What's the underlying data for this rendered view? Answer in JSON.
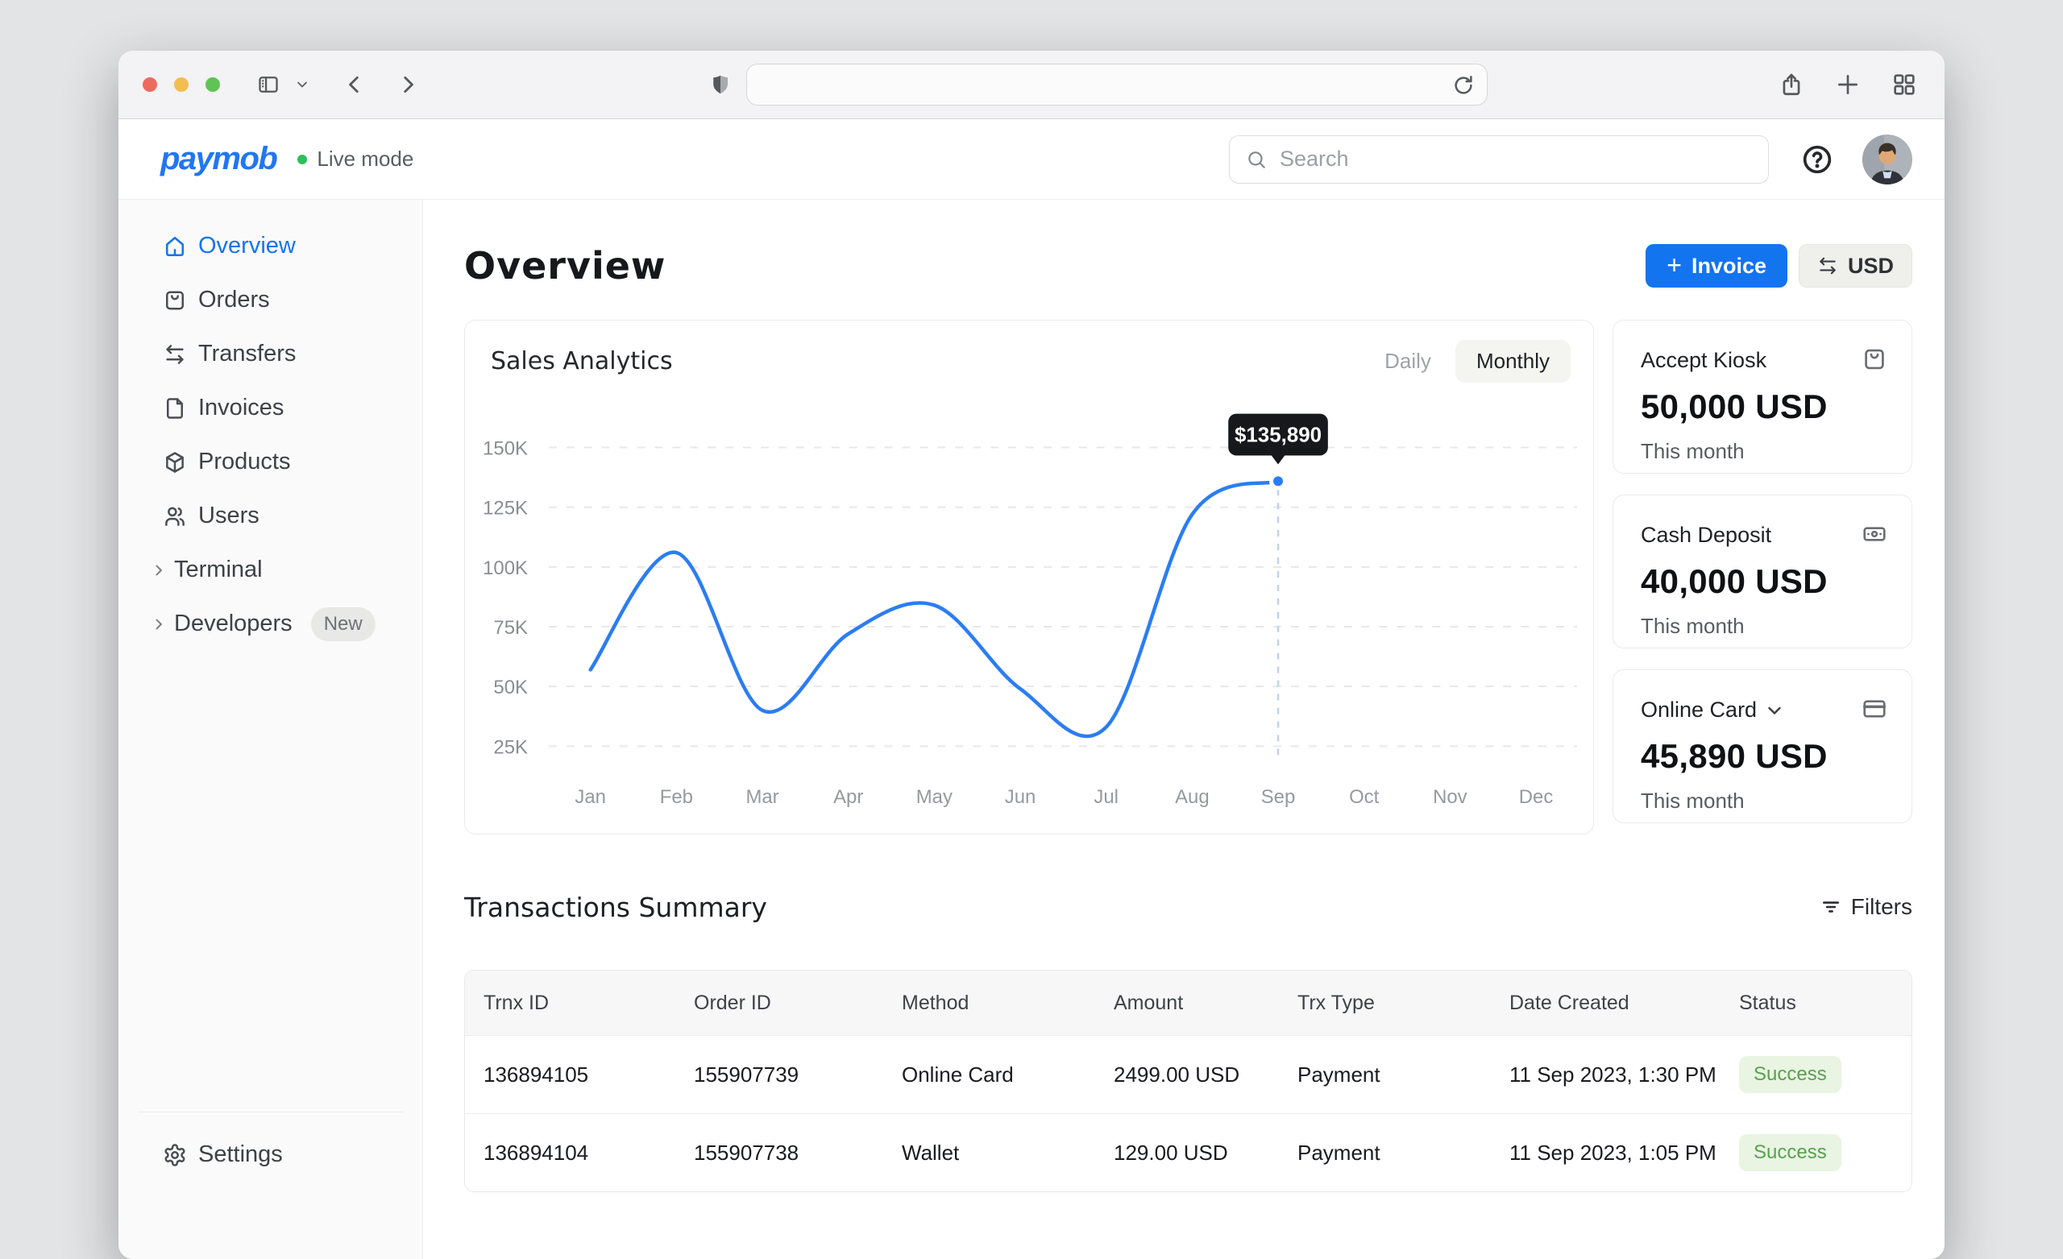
{
  "browser": {
    "url": ""
  },
  "header": {
    "logo": "paymob",
    "mode_label": "Live mode",
    "search_placeholder": "Search"
  },
  "sidebar": {
    "items": [
      {
        "key": "overview",
        "label": "Overview",
        "icon": "home",
        "active": true,
        "collapsible": false
      },
      {
        "key": "orders",
        "label": "Orders",
        "icon": "bag",
        "active": false,
        "collapsible": false
      },
      {
        "key": "transfers",
        "label": "Transfers",
        "icon": "swap",
        "active": false,
        "collapsible": false
      },
      {
        "key": "invoices",
        "label": "Invoices",
        "icon": "file",
        "active": false,
        "collapsible": false
      },
      {
        "key": "products",
        "label": "Products",
        "icon": "box",
        "active": false,
        "collapsible": false
      },
      {
        "key": "users",
        "label": "Users",
        "icon": "users",
        "active": false,
        "collapsible": false
      },
      {
        "key": "terminal",
        "label": "Terminal",
        "icon": "chevron-right",
        "active": false,
        "collapsible": true
      },
      {
        "key": "developers",
        "label": "Developers",
        "icon": "chevron-right",
        "active": false,
        "collapsible": true,
        "badge": "New"
      }
    ],
    "settings_label": "Settings"
  },
  "page": {
    "title": "Overview",
    "invoice_button_label": "Invoice",
    "currency_label": "USD"
  },
  "sales": {
    "title": "Sales Analytics",
    "toggle_daily": "Daily",
    "toggle_monthly": "Monthly",
    "selected": "Monthly"
  },
  "chart_data": {
    "type": "line",
    "title": "Sales Analytics",
    "x_categories": [
      "Jan",
      "Feb",
      "Mar",
      "Apr",
      "May",
      "Jun",
      "Jul",
      "Aug",
      "Sep",
      "Oct",
      "Nov",
      "Dec"
    ],
    "series": [
      {
        "name": "Sales",
        "values": [
          57000,
          106000,
          40000,
          72000,
          84000,
          49000,
          33000,
          122000,
          135890,
          null,
          null,
          null
        ]
      }
    ],
    "y_ticks": [
      "150K",
      "125K",
      "100K",
      "75K",
      "50K",
      "25K"
    ],
    "ylim": [
      25000,
      150000
    ],
    "grid": "horizontal-dashed",
    "legend": "none",
    "highlight": {
      "month": "Sep",
      "value": 135890,
      "label": "$135,890"
    }
  },
  "summary_cards": [
    {
      "key": "accept-kiosk",
      "title": "Accept Kiosk",
      "value": "50,000 USD",
      "period": "This month",
      "icon": "kiosk",
      "dropdown": false
    },
    {
      "key": "cash-deposit",
      "title": "Cash Deposit",
      "value": "40,000 USD",
      "period": "This month",
      "icon": "cash",
      "dropdown": false
    },
    {
      "key": "online-card",
      "title": "Online Card",
      "value": "45,890 USD",
      "period": "This month",
      "icon": "card",
      "dropdown": true
    }
  ],
  "transactions": {
    "title": "Transactions Summary",
    "filters_label": "Filters",
    "columns": [
      "Trnx ID",
      "Order ID",
      "Method",
      "Amount",
      "Trx Type",
      "Date Created",
      "Status"
    ],
    "rows": [
      {
        "trnx_id": "136894105",
        "order_id": "155907739",
        "method": "Online Card",
        "amount": "2499.00 USD",
        "trx_type": "Payment",
        "date_created": "11 Sep 2023, 1:30 PM",
        "status": "Success"
      },
      {
        "trnx_id": "136894104",
        "order_id": "155907738",
        "method": "Wallet",
        "amount": "129.00 USD",
        "trx_type": "Payment",
        "date_created": "11 Sep 2023, 1:05 PM",
        "status": "Success"
      }
    ]
  },
  "colors": {
    "accent": "#1374F0",
    "chart_line": "#2B7DF3",
    "tooltip_bg": "#16181C",
    "success_bg": "#E9F4E3",
    "success_text": "#58A14D",
    "live_dot": "#2EBE5B",
    "logo_blue": "#2176F3"
  }
}
